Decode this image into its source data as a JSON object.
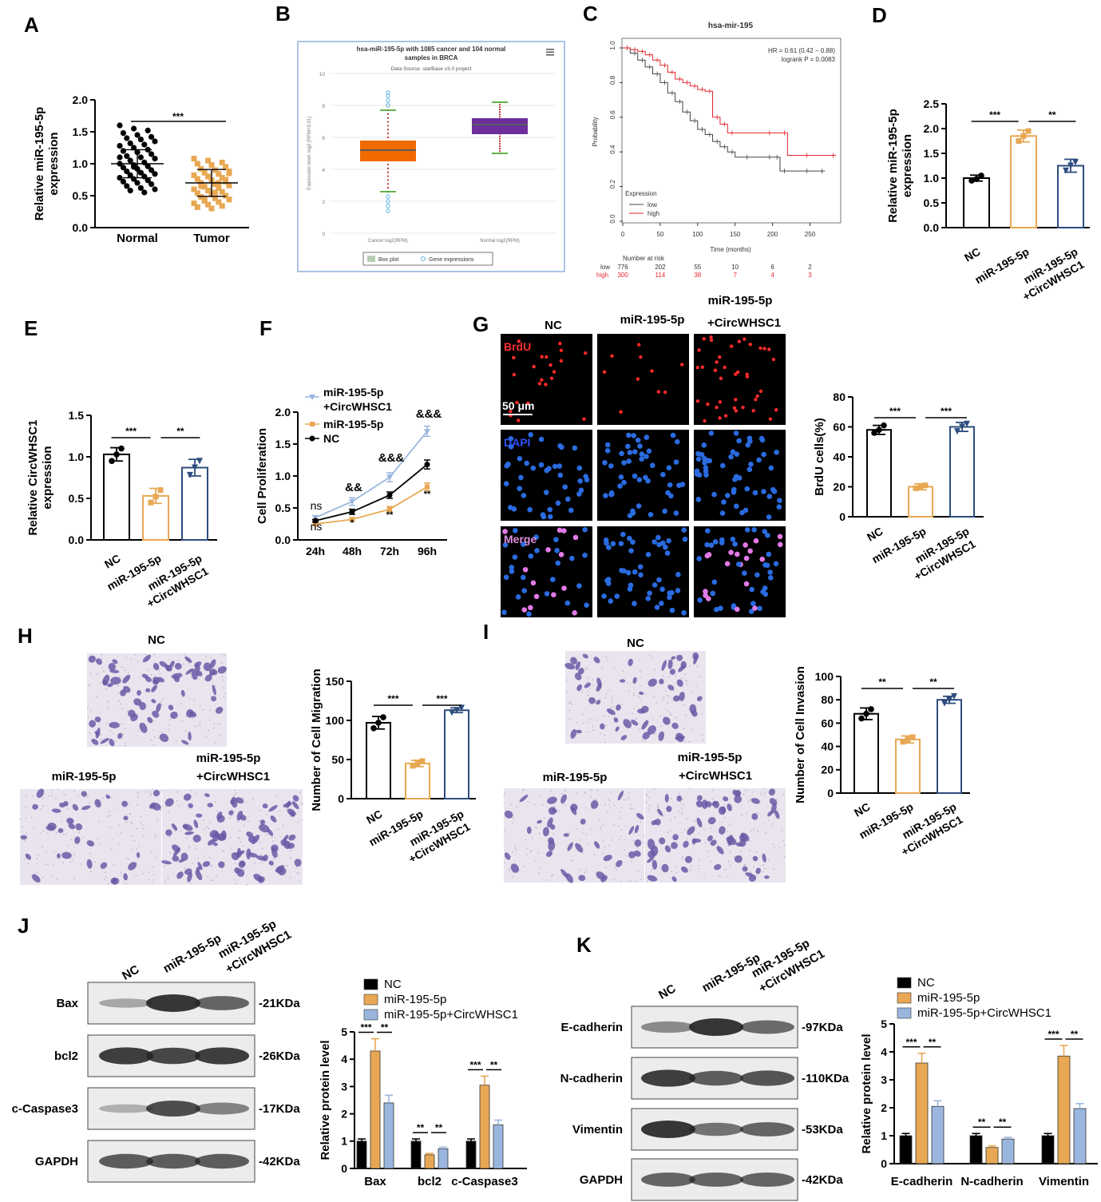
{
  "colors": {
    "black": "#000000",
    "orange": "#e8a853",
    "blue": "#2e4c7e",
    "lightblue": "#9bb6de",
    "red": "#e3262d",
    "boxorange": "#f06a00",
    "boxpurple": "#6c2f9c",
    "cells_blue": "#2a6be0",
    "cells_merge": "#e27ae8"
  },
  "panels": {
    "A": "A",
    "B": "B",
    "C": "C",
    "D": "D",
    "E": "E",
    "F": "F",
    "G": "G",
    "H": "H",
    "I": "I",
    "J": "J",
    "K": "K"
  },
  "sig": {
    "three": "***",
    "two": "**",
    "one": "*",
    "ns": "ns",
    "amp2": "&&",
    "amp3": "&&&"
  },
  "groups": {
    "nc": "NC",
    "mir": "miR-195-5p",
    "combo_top": "miR-195-5p",
    "combo_bottom": "+CircWHSC1",
    "combo_inline": "miR-195-5p+CircWHSC1"
  },
  "chart_data": [
    {
      "id": "A",
      "type": "scatter",
      "ylabel": [
        "Relative miR-195-5p",
        "expression"
      ],
      "categories": [
        "Normal",
        "Tumor"
      ],
      "ylim": [
        0,
        2.0
      ],
      "yticks": [
        "0.0",
        "0.5",
        "1.0",
        "1.5",
        "2.0"
      ],
      "series": [
        {
          "category": "Normal",
          "mean": 1.0,
          "sd": 0.22,
          "color": "black",
          "values": [
            1.6,
            1.55,
            1.52,
            1.48,
            1.45,
            1.42,
            1.4,
            1.38,
            1.35,
            1.32,
            1.3,
            1.28,
            1.25,
            1.22,
            1.2,
            1.18,
            1.15,
            1.12,
            1.1,
            1.08,
            1.05,
            1.02,
            1.0,
            0.98,
            0.96,
            0.94,
            0.92,
            0.9,
            0.88,
            0.86,
            0.84,
            0.82,
            0.8,
            0.78,
            0.76,
            0.74,
            0.72,
            0.7,
            0.68,
            0.65,
            0.62,
            0.6,
            0.58,
            0.55,
            1.1,
            0.95
          ]
        },
        {
          "category": "Tumor",
          "mean": 0.7,
          "sd": 0.21,
          "color": "orange",
          "values": [
            1.08,
            1.05,
            1.02,
            1.0,
            0.98,
            0.95,
            0.92,
            0.9,
            0.88,
            0.86,
            0.84,
            0.82,
            0.8,
            0.78,
            0.76,
            0.74,
            0.72,
            0.7,
            0.68,
            0.66,
            0.64,
            0.62,
            0.6,
            0.58,
            0.56,
            0.54,
            0.52,
            0.5,
            0.48,
            0.46,
            0.44,
            0.42,
            0.4,
            0.38,
            0.36,
            0.34,
            0.32,
            0.3,
            0.75,
            0.65,
            0.55,
            0.85,
            0.45,
            0.7
          ]
        }
      ],
      "significance": [
        {
          "from": 0,
          "to": 1,
          "label": "***"
        }
      ]
    },
    {
      "id": "B",
      "type": "box",
      "title": "hsa-miR-195-5p with 1085 cancer and 104 normal",
      "title2": "samples in BRCA",
      "subtitle": "Data Source: starBase v3.0 project",
      "ylabel": "Expression level: log2 [RPM+0.01]",
      "ylim": [
        0,
        10
      ],
      "yticks": [
        "0",
        "2",
        "4",
        "6",
        "8",
        "10"
      ],
      "categories": [
        "Cancer log2(RPM)",
        "Normal log2(RPM)"
      ],
      "boxes": [
        {
          "name": "Cancer log2(RPM)",
          "q1": 4.5,
          "median": 5.2,
          "q3": 5.8,
          "whisker_low": 2.6,
          "whisker_high": 7.7,
          "color": "boxorange",
          "outliers": [
            1.4,
            1.7,
            2.0,
            2.3,
            8.0,
            8.3,
            8.6,
            8.8
          ]
        },
        {
          "name": "Normal log2(RPM)",
          "q1": 6.2,
          "median": 6.8,
          "q3": 7.2,
          "whisker_low": 5.0,
          "whisker_high": 8.2,
          "color": "boxpurple",
          "outliers": []
        }
      ],
      "legend": [
        "Box plot",
        "Gene expressions"
      ]
    },
    {
      "id": "C",
      "type": "line",
      "title": "hsa-mir-195",
      "xlabel": "Time (months)",
      "ylabel": "Probability",
      "xlim": [
        0,
        290
      ],
      "ylim": [
        0,
        1.0
      ],
      "xticks": [
        "0",
        "50",
        "100",
        "150",
        "200",
        "250"
      ],
      "yticks": [
        "0.0",
        "0.2",
        "0.4",
        "0.6",
        "0.8",
        "1.0"
      ],
      "annotation": [
        "HR = 0.61 (0.42 − 0.88)",
        "logrank P = 0.0083"
      ],
      "legend_title": "Expression",
      "series": [
        {
          "name": "low",
          "color": "#444444",
          "x": [
            0,
            10,
            20,
            30,
            40,
            50,
            60,
            70,
            80,
            90,
            100,
            110,
            120,
            130,
            140,
            150,
            170,
            200,
            210,
            220,
            250,
            270
          ],
          "y": [
            1.0,
            0.97,
            0.93,
            0.89,
            0.85,
            0.8,
            0.74,
            0.69,
            0.63,
            0.58,
            0.53,
            0.5,
            0.46,
            0.43,
            0.4,
            0.37,
            0.37,
            0.37,
            0.29,
            0.29,
            0.29,
            0.29
          ]
        },
        {
          "name": "high",
          "color": "#e3262d",
          "x": [
            0,
            10,
            20,
            30,
            40,
            50,
            60,
            70,
            80,
            90,
            100,
            110,
            120,
            130,
            140,
            150,
            200,
            220,
            250,
            285
          ],
          "y": [
            1.0,
            0.99,
            0.98,
            0.96,
            0.93,
            0.9,
            0.86,
            0.82,
            0.8,
            0.78,
            0.76,
            0.75,
            0.6,
            0.56,
            0.51,
            0.51,
            0.51,
            0.38,
            0.38,
            0.38
          ]
        }
      ],
      "risk_label": "Number at risk",
      "risk": {
        "low": {
          "name": "low",
          "values": [
            "776",
            "202",
            "55",
            "10",
            "6",
            "2"
          ]
        },
        "high": {
          "name": "high",
          "values": [
            "300",
            "114",
            "38",
            "7",
            "4",
            "3"
          ]
        }
      }
    },
    {
      "id": "D",
      "type": "bar",
      "ylabel": [
        "Relative miR-195-5p",
        "expression"
      ],
      "ylim": [
        0,
        2.5
      ],
      "yticks": [
        "0.0",
        "0.5",
        "1.0",
        "1.5",
        "2.0",
        "2.5"
      ],
      "categories": [
        "NC",
        "miR-195-5p",
        "miR-195-5p +CircWHSC1"
      ],
      "values": [
        1.0,
        1.85,
        1.25
      ],
      "errors": [
        0.06,
        0.12,
        0.13
      ],
      "points": [
        [
          0.95,
          1.05,
          0.98
        ],
        [
          1.75,
          1.95,
          1.85
        ],
        [
          1.15,
          1.32,
          1.25
        ]
      ],
      "colors": [
        "black",
        "orange",
        "blue"
      ],
      "significance": [
        {
          "from": 0,
          "to": 1,
          "label": "***"
        },
        {
          "from": 1,
          "to": 2,
          "label": "**"
        }
      ]
    },
    {
      "id": "E",
      "type": "bar",
      "ylabel": [
        "Relative CircWHSC1",
        "expression"
      ],
      "ylim": [
        0,
        1.5
      ],
      "yticks": [
        "0.0",
        "0.5",
        "1.0",
        "1.5"
      ],
      "categories": [
        "NC",
        "miR-195-5p",
        "miR-195-5p +CircWHSC1"
      ],
      "values": [
        1.03,
        0.53,
        0.87
      ],
      "errors": [
        0.08,
        0.09,
        0.1
      ],
      "points": [
        [
          0.95,
          1.1,
          1.03
        ],
        [
          0.45,
          0.6,
          0.52
        ],
        [
          0.78,
          0.95,
          0.87
        ]
      ],
      "colors": [
        "black",
        "orange",
        "blue"
      ],
      "significance": [
        {
          "from": 0,
          "to": 1,
          "label": "***"
        },
        {
          "from": 1,
          "to": 2,
          "label": "**"
        }
      ]
    },
    {
      "id": "F",
      "type": "line",
      "ylabel": "Cell Proliferation",
      "ylim": [
        0,
        2.0
      ],
      "yticks": [
        "0.0",
        "0.5",
        "1.0",
        "1.5",
        "2.0"
      ],
      "categories": [
        "24h",
        "48h",
        "72h",
        "96h"
      ],
      "series": [
        {
          "name": "miR-195-5p +CircWHSC1",
          "color": "lightblue",
          "values": [
            0.35,
            0.6,
            0.98,
            1.7
          ],
          "errors": [
            0.03,
            0.06,
            0.07,
            0.08
          ]
        },
        {
          "name": "miR-195-5p",
          "color": "orange",
          "values": [
            0.25,
            0.32,
            0.48,
            0.83
          ],
          "errors": [
            0.02,
            0.03,
            0.04,
            0.06
          ]
        },
        {
          "name": "NC",
          "color": "black",
          "values": [
            0.3,
            0.44,
            0.7,
            1.18
          ],
          "errors": [
            0.02,
            0.04,
            0.05,
            0.07
          ]
        }
      ],
      "annotations": {
        "upper": [
          "ns",
          "&&",
          "&&&",
          "&&&"
        ],
        "lower": [
          "ns",
          "*",
          "**",
          "**"
        ]
      }
    },
    {
      "id": "G",
      "type": "bar",
      "ylabel": "BrdU cells(%)",
      "ylim": [
        0,
        80
      ],
      "yticks": [
        "0",
        "20",
        "40",
        "60",
        "80"
      ],
      "categories": [
        "NC",
        "miR-195-5p",
        "miR-195-5p +CircWHSC1"
      ],
      "values": [
        58,
        20,
        60
      ],
      "errors": [
        3,
        2,
        3
      ],
      "points": [
        [
          56,
          61,
          58
        ],
        [
          19,
          21,
          20
        ],
        [
          57,
          62,
          60
        ]
      ],
      "colors": [
        "black",
        "orange",
        "blue"
      ],
      "significance": [
        {
          "from": 0,
          "to": 1,
          "label": "***"
        },
        {
          "from": 1,
          "to": 2,
          "label": "***"
        }
      ],
      "image_rows": [
        "BrdU",
        "DAPI",
        "Merge"
      ],
      "scale_bar": "50 μm"
    },
    {
      "id": "H",
      "type": "bar",
      "ylabel": "Number of Cell Migration",
      "ylim": [
        0,
        150
      ],
      "yticks": [
        "0",
        "50",
        "100",
        "150"
      ],
      "categories": [
        "NC",
        "miR-195-5p",
        "miR-195-5p +CircWHSC1"
      ],
      "values": [
        97,
        45,
        113
      ],
      "errors": [
        8,
        4,
        3
      ],
      "points": [
        [
          90,
          104,
          97
        ],
        [
          42,
          48,
          45
        ],
        [
          110,
          116,
          113
        ]
      ],
      "colors": [
        "black",
        "orange",
        "blue"
      ],
      "significance": [
        {
          "from": 0,
          "to": 1,
          "label": "***"
        },
        {
          "from": 1,
          "to": 2,
          "label": "***"
        }
      ]
    },
    {
      "id": "I",
      "type": "bar",
      "ylabel": "Number of Cell Invasion",
      "ylim": [
        0,
        100
      ],
      "yticks": [
        "0",
        "20",
        "40",
        "60",
        "80",
        "100"
      ],
      "categories": [
        "NC",
        "miR-195-5p",
        "miR-195-5p +CircWHSC1"
      ],
      "values": [
        68,
        46,
        80
      ],
      "errors": [
        5,
        3,
        3
      ],
      "points": [
        [
          64,
          72,
          68
        ],
        [
          44,
          48,
          46
        ],
        [
          77,
          83,
          80
        ]
      ],
      "colors": [
        "black",
        "orange",
        "blue"
      ],
      "significance": [
        {
          "from": 0,
          "to": 1,
          "label": "**"
        },
        {
          "from": 1,
          "to": 2,
          "label": "**"
        }
      ]
    },
    {
      "id": "J",
      "type": "bar",
      "ylabel": "Relative protein level",
      "ylim": [
        0,
        5
      ],
      "yticks": [
        "0",
        "1",
        "2",
        "3",
        "4",
        "5"
      ],
      "categories": [
        "Bax",
        "bcl2",
        "c-Caspase3"
      ],
      "series": [
        {
          "name": "NC",
          "color": "black",
          "values": [
            1.0,
            1.0,
            1.0
          ],
          "errors": [
            0.08,
            0.08,
            0.08
          ]
        },
        {
          "name": "miR-195-5p",
          "color": "orange",
          "values": [
            4.3,
            0.5,
            3.05
          ],
          "errors": [
            0.45,
            0.05,
            0.33
          ]
        },
        {
          "name": "miR-195-5p+CircWHSC1",
          "color": "lightblue",
          "values": [
            2.4,
            0.72,
            1.6
          ],
          "errors": [
            0.28,
            0.06,
            0.17
          ]
        }
      ],
      "significance": [
        [
          "***",
          "**"
        ],
        [
          "**",
          "**"
        ],
        [
          "***",
          "**"
        ]
      ],
      "blot_rows": [
        {
          "name": "Bax",
          "size": "-21KDa",
          "bands": [
            0.25,
            1.0,
            0.7
          ]
        },
        {
          "name": "bcl2",
          "size": "-26KDa",
          "bands": [
            0.95,
            0.9,
            0.95
          ]
        },
        {
          "name": "c-Caspase3",
          "size": "-17KDa",
          "bands": [
            0.2,
            0.85,
            0.5
          ]
        },
        {
          "name": "GAPDH",
          "size": "-42KDa",
          "bands": [
            0.75,
            0.75,
            0.75
          ]
        }
      ]
    },
    {
      "id": "K",
      "type": "bar",
      "ylabel": "Relative protein level",
      "ylim": [
        0,
        5
      ],
      "yticks": [
        "0",
        "1",
        "2",
        "3",
        "4",
        "5"
      ],
      "categories": [
        "E-cadherin",
        "N-cadherin",
        "Vimentin"
      ],
      "series": [
        {
          "name": "NC",
          "color": "black",
          "values": [
            1.0,
            1.0,
            1.0
          ],
          "errors": [
            0.08,
            0.08,
            0.08
          ]
        },
        {
          "name": "miR-195-5p",
          "color": "orange",
          "values": [
            3.6,
            0.58,
            3.85
          ],
          "errors": [
            0.35,
            0.06,
            0.38
          ]
        },
        {
          "name": "miR-195-5p+CircWHSC1",
          "color": "lightblue",
          "values": [
            2.05,
            0.88,
            1.97
          ],
          "errors": [
            0.2,
            0.06,
            0.18
          ]
        }
      ],
      "significance": [
        [
          "***",
          "**"
        ],
        [
          "**",
          "**"
        ],
        [
          "***",
          "**"
        ]
      ],
      "blot_rows": [
        {
          "name": "E-cadherin",
          "size": "-97KDa",
          "bands": [
            0.45,
            1.0,
            0.65
          ]
        },
        {
          "name": "N-cadherin",
          "size": "-110KDa",
          "bands": [
            0.95,
            0.75,
            0.8
          ]
        },
        {
          "name": "Vimentin",
          "size": "-53KDa",
          "bands": [
            1.0,
            0.6,
            0.7
          ]
        },
        {
          "name": "GAPDH",
          "size": "-42KDa",
          "bands": [
            0.7,
            0.7,
            0.7
          ]
        }
      ]
    }
  ]
}
